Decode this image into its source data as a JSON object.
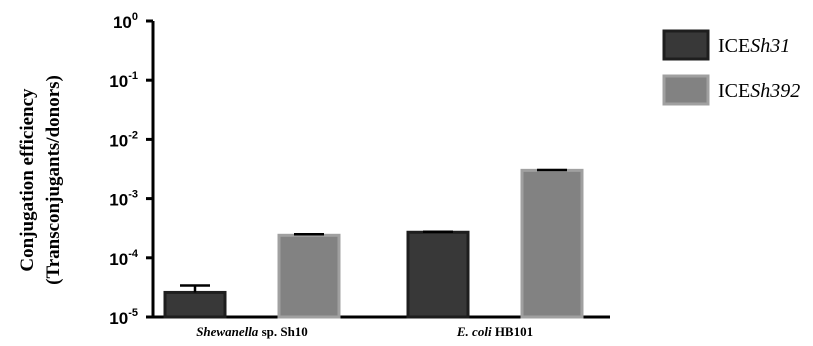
{
  "chart_data": {
    "type": "bar",
    "yscale": "log",
    "ylim": [
      1e-05,
      1
    ],
    "yticks": [
      {
        "mant": "10",
        "exp": "0"
      },
      {
        "mant": "10",
        "exp": "-1"
      },
      {
        "mant": "10",
        "exp": "-2"
      },
      {
        "mant": "10",
        "exp": "-3"
      },
      {
        "mant": "10",
        "exp": "-4"
      },
      {
        "mant": "10",
        "exp": "-5"
      }
    ],
    "ylabel_line1": "Conjugation efficiency",
    "ylabel_line2": "(Transconjugants/donors)",
    "categories": [
      {
        "italic": "Shewanella",
        "rest": " sp. Sh10"
      },
      {
        "italic": "E. coli",
        "rest": " HB101"
      }
    ],
    "series": [
      {
        "name_prefix": "ICE",
        "name_italic": "Sh31",
        "color": "#383838",
        "values": [
          2.6e-05,
          0.00027
        ],
        "errors": [
          8e-06,
          6e-06
        ]
      },
      {
        "name_prefix": "ICE",
        "name_italic": "Sh392",
        "color": "#828282",
        "values": [
          0.00024,
          0.003
        ],
        "errors": [
          1e-05,
          4e-05
        ]
      }
    ],
    "legend_position": "top-right"
  }
}
